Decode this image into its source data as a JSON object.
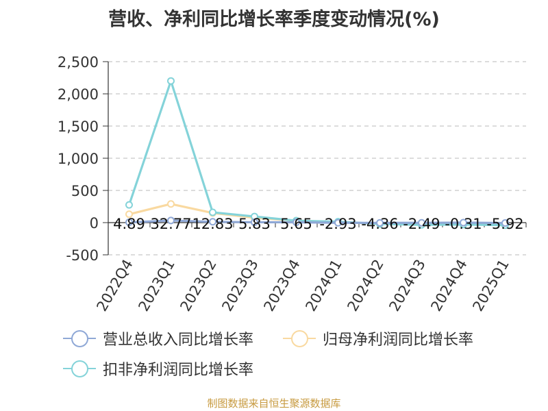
{
  "chart_data": {
    "type": "line",
    "title": "营收、净利同比增长率季度变动情况(%)",
    "categories": [
      "2022Q4",
      "2023Q1",
      "2023Q2",
      "2023Q3",
      "2023Q4",
      "2024Q1",
      "2024Q2",
      "2024Q3",
      "2024Q4",
      "2025Q1"
    ],
    "ylim": [
      -500,
      2500
    ],
    "yticks": [
      -500,
      0,
      500,
      1000,
      1500,
      2000,
      2500
    ],
    "ytick_labels": [
      "-500",
      "0",
      "500",
      "1,000",
      "1,500",
      "2,000",
      "2,500"
    ],
    "grid": true,
    "legend_position": "bottom",
    "series": [
      {
        "name": "营业总收入同比增长率",
        "color": "#8fa8d6",
        "values": [
          4.89,
          32.77,
          12.83,
          5.83,
          5.65,
          -2.93,
          -4.36,
          -2.49,
          -0.31,
          -5.92
        ],
        "labels": [
          "4.89",
          "32.77",
          "12.83",
          "5.83",
          "5.65",
          "-2.93",
          "-4.36",
          "-2.49",
          "-0.31",
          "-5.92"
        ]
      },
      {
        "name": "归母净利润同比增长率",
        "color": "#f9d9a0",
        "values": [
          130,
          290,
          150,
          75,
          30,
          10,
          -20,
          -30,
          -25,
          -35
        ]
      },
      {
        "name": "扣非净利润同比增长率",
        "color": "#84d3d9",
        "values": [
          275,
          2200,
          160,
          95,
          30,
          15,
          -20,
          -35,
          -30,
          -40
        ]
      }
    ]
  },
  "footer": {
    "source": "制图数据来自恒生聚源数据库"
  }
}
